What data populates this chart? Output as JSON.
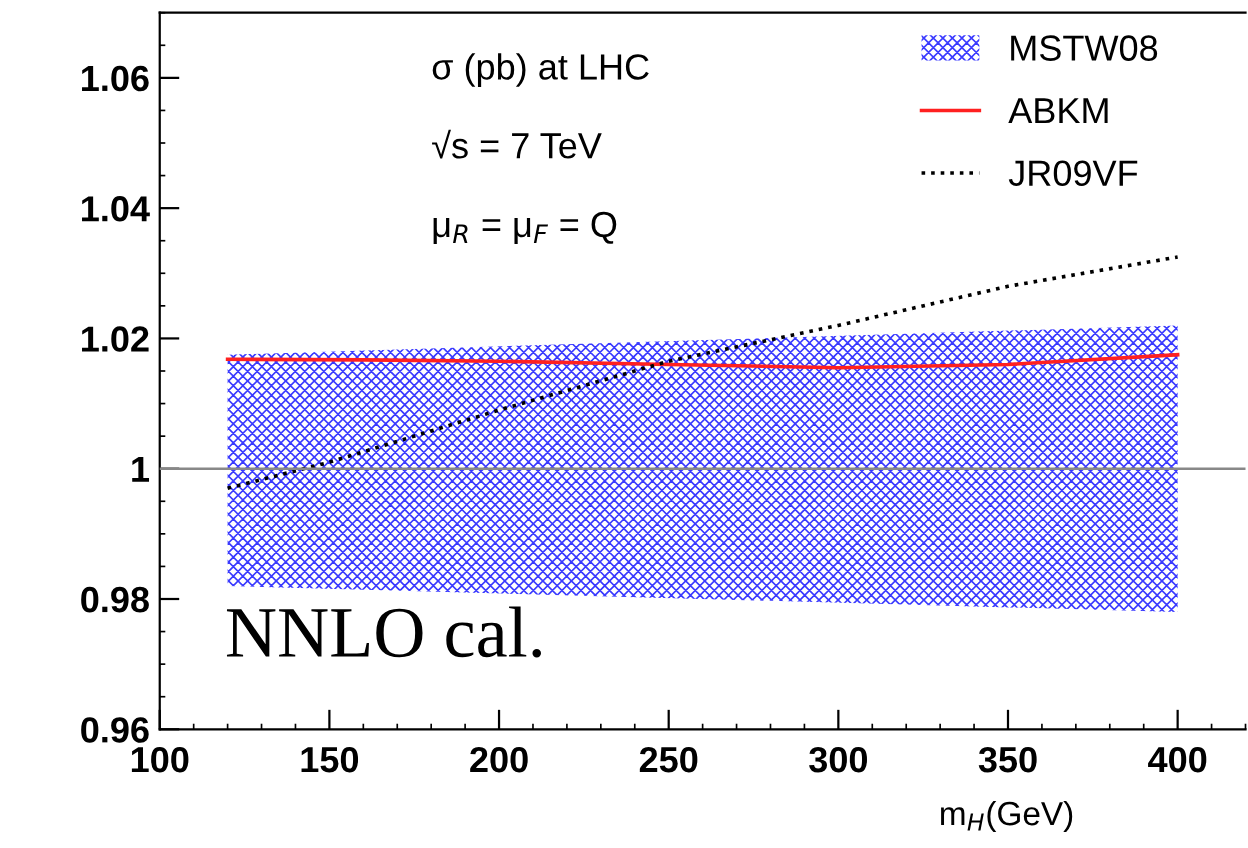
{
  "chart_data": {
    "type": "line",
    "xlabel": "m$_{H}$(GeV)",
    "annotations": [
      "σ (pb) at LHC",
      "√s = 7 TeV",
      "μ$_{R}$ = μ$_{F}$ = Q",
      "NNLO cal."
    ],
    "series": [
      {
        "name": "MSTW08",
        "type": "area",
        "color": "#3a3aff",
        "x": [
          120,
          400
        ],
        "values": [
          null,
          null
        ],
        "lower": [
          0.982,
          0.978
        ],
        "upper": [
          1.0175,
          1.022
        ]
      },
      {
        "name": "ABKM",
        "color": "#ff2020",
        "line_style": "solid",
        "x": [
          120,
          160,
          200,
          250,
          300,
          350,
          400
        ],
        "values": [
          1.0168,
          1.0167,
          1.0165,
          1.016,
          1.0155,
          1.016,
          1.0175
        ]
      },
      {
        "name": "JR09VF",
        "color": "#000000",
        "line_style": "dotted",
        "x": [
          120,
          150,
          200,
          250,
          300,
          350,
          400
        ],
        "values": [
          0.997,
          1.001,
          1.009,
          1.0165,
          1.022,
          1.028,
          1.0325
        ]
      }
    ],
    "ref_lines": [
      {
        "axis": "y",
        "value": 1,
        "color": "#888888"
      }
    ],
    "xlim": [
      100,
      420
    ],
    "ylim": [
      0.96,
      1.07
    ],
    "xticks": [
      100,
      150,
      200,
      250,
      300,
      350,
      400
    ],
    "yticks": [
      0.96,
      0.98,
      1,
      1.02,
      1.04,
      1.06
    ],
    "grid": false,
    "legend": "top right",
    "marker": "none"
  }
}
